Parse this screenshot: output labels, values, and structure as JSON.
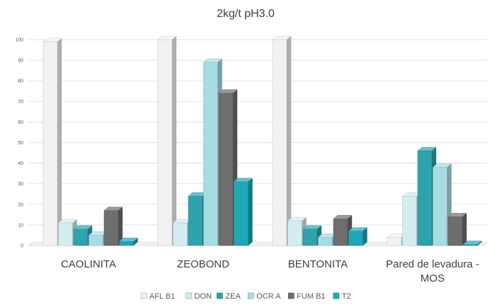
{
  "chart_data": {
    "type": "bar",
    "title": "2kg/t   pH3.0",
    "categories": [
      "CAOLINITA",
      "ZEOBOND",
      "BENTONITA",
      "Pared de levadura - MOS"
    ],
    "category_colors": [
      "#404040",
      "#7a9a2a",
      "#404040",
      "#404040"
    ],
    "ylim": [
      0,
      100
    ],
    "yticks": [
      0,
      10,
      20,
      30,
      40,
      50,
      60,
      70,
      80,
      90,
      100
    ],
    "grid": true,
    "legend_position": "bottom",
    "series": [
      {
        "name": "AFL B1",
        "color": "#f2f2f2",
        "values": [
          99,
          100,
          100,
          4
        ]
      },
      {
        "name": "DON",
        "color": "#d3eef1",
        "values": [
          11,
          11,
          12,
          24
        ]
      },
      {
        "name": "ZEA",
        "color": "#2fa3ad",
        "values": [
          8,
          24,
          8,
          46
        ]
      },
      {
        "name": "OCR A",
        "color": "#a6dde3",
        "values": [
          5,
          89,
          4,
          38
        ]
      },
      {
        "name": "FUM B1",
        "color": "#6e6e6e",
        "values": [
          17,
          74,
          13,
          14
        ]
      },
      {
        "name": "T2",
        "color": "#1fa7b8",
        "values": [
          2,
          31,
          7,
          0.5
        ]
      }
    ]
  }
}
